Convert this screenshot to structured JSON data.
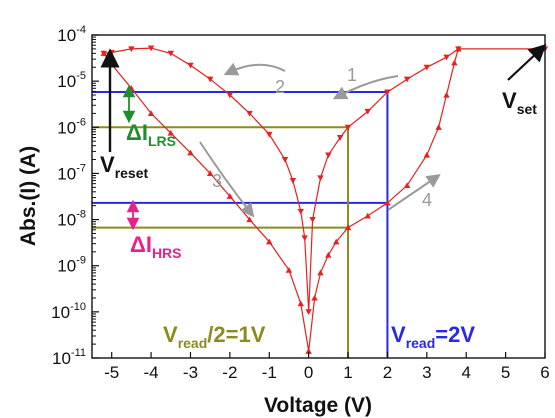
{
  "chart_data": {
    "type": "line",
    "title": "",
    "xlabel": "Voltage (V)",
    "ylabel": "Abs.(I) (A)",
    "xlim": [
      -5.5,
      6
    ],
    "ylim_log10": [
      -11,
      -4
    ],
    "yscale": "log",
    "x_ticks": [
      -5,
      -4,
      -3,
      -2,
      -1,
      0,
      1,
      2,
      3,
      4,
      5,
      6
    ],
    "x_tick_labels": [
      "-5",
      "-4",
      "-3",
      "-2",
      "-1",
      "0",
      "1",
      "2",
      "3",
      "4",
      "5",
      "6"
    ],
    "y_tick_labels": [
      {
        "base": "10",
        "exp": "-4"
      },
      {
        "base": "10",
        "exp": "-5"
      },
      {
        "base": "10",
        "exp": "-6"
      },
      {
        "base": "10",
        "exp": "-7"
      },
      {
        "base": "10",
        "exp": "-8"
      },
      {
        "base": "10",
        "exp": "-9"
      },
      {
        "base": "10",
        "exp": "-10"
      },
      {
        "base": "10",
        "exp": "-11"
      }
    ],
    "series": [
      {
        "color": "#e8201f",
        "marker": "down-triangle",
        "points": [
          [
            -5.2,
            4e-05
          ],
          [
            -5.0,
            4.2e-05
          ],
          [
            -4.5,
            5e-05
          ],
          [
            -4.0,
            5.2e-05
          ],
          [
            -3.5,
            4e-05
          ],
          [
            -3.0,
            2.2e-05
          ],
          [
            -2.5,
            1.1e-05
          ],
          [
            -2.0,
            5e-06
          ],
          [
            -1.5,
            2e-06
          ],
          [
            -1.0,
            7e-07
          ],
          [
            -0.6,
            2e-07
          ],
          [
            -0.4,
            7e-08
          ],
          [
            -0.2,
            1.5e-08
          ],
          [
            -0.1,
            4e-09
          ],
          [
            0.0,
            1e-10
          ],
          [
            0.1,
            1e-08
          ],
          [
            0.3,
            8e-08
          ],
          [
            0.5,
            2.5e-07
          ],
          [
            0.8,
            6e-07
          ],
          [
            1.0,
            1e-06
          ],
          [
            1.5,
            2.2e-06
          ],
          [
            2.0,
            5.8e-06
          ],
          [
            2.5,
            1.1e-05
          ],
          [
            3.0,
            2e-05
          ],
          [
            3.5,
            3.3e-05
          ],
          [
            3.8,
            5e-05
          ],
          [
            6.0,
            5e-05
          ]
        ]
      },
      {
        "color": "#e8201f",
        "marker": "up-triangle",
        "points": [
          [
            -5.2,
            4e-05
          ],
          [
            -5.0,
            2.3e-05
          ],
          [
            -4.5,
            7e-06
          ],
          [
            -4.0,
            2e-06
          ],
          [
            -3.5,
            7.5e-07
          ],
          [
            -3.0,
            2.8e-07
          ],
          [
            -2.5,
            1e-07
          ],
          [
            -2.0,
            3.2e-08
          ],
          [
            -1.5,
            1e-08
          ],
          [
            -1.0,
            3.3e-09
          ],
          [
            -0.5,
            8e-10
          ],
          [
            -0.2,
            1.5e-10
          ],
          [
            0.0,
            1.4e-11
          ],
          [
            0.15,
            2e-10
          ],
          [
            0.3,
            7e-10
          ],
          [
            0.5,
            1.7e-09
          ],
          [
            0.7,
            3.3e-09
          ],
          [
            1.0,
            6.7e-09
          ],
          [
            1.5,
            1.2e-08
          ],
          [
            2.0,
            2.3e-08
          ],
          [
            2.5,
            5.5e-08
          ],
          [
            3.0,
            2.5e-07
          ],
          [
            3.3,
            1e-06
          ],
          [
            3.5,
            5e-06
          ],
          [
            3.7,
            2.5e-05
          ],
          [
            3.8,
            5e-05
          ]
        ]
      }
    ],
    "reference_lines": [
      {
        "color": "#2828e8",
        "x": 2,
        "y_low": 2.3e-08,
        "y_high": 5.8e-06,
        "x_from": -5.5
      },
      {
        "color": "#8c8c1e",
        "x": 1,
        "y_low": 6.7e-09,
        "y_high": 1e-06,
        "x_from": -5.5
      }
    ],
    "annotations": {
      "vset": {
        "main": "V",
        "sub": "set",
        "color": "#111111"
      },
      "vreset": {
        "main": "V",
        "sub": "reset",
        "color": "#111111"
      },
      "dlrs": {
        "main": "ΔI",
        "sub": "LRS",
        "color": "#1f8f2e"
      },
      "dhrs": {
        "main": "ΔI",
        "sub": "HRS",
        "color": "#e8208a"
      },
      "vread1": {
        "main": "V",
        "sub": "read",
        "rest": "/2=1V",
        "color": "#8c8c1e"
      },
      "vread2": {
        "main": "V",
        "sub": "read",
        "rest": "=2V",
        "color": "#2828e8"
      },
      "arrow_labels": [
        "1",
        "2",
        "3",
        "4"
      ]
    }
  }
}
